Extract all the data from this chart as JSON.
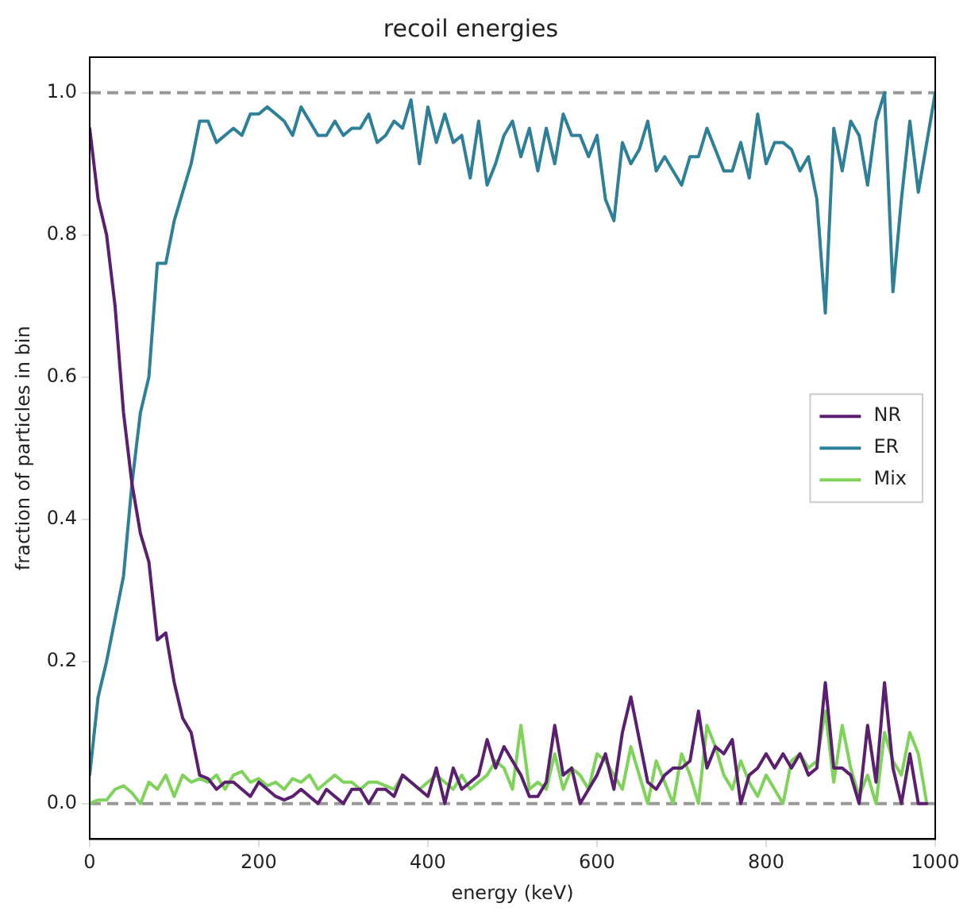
{
  "chart_data": {
    "type": "line",
    "title": "recoil energies",
    "xlabel": "energy (keV)",
    "ylabel": "fraction of particles in bin",
    "x": [
      0,
      10,
      20,
      30,
      40,
      50,
      60,
      70,
      80,
      90,
      100,
      110,
      120,
      130,
      140,
      150,
      160,
      170,
      180,
      190,
      200,
      210,
      220,
      230,
      240,
      250,
      260,
      270,
      280,
      290,
      300,
      310,
      320,
      330,
      340,
      350,
      360,
      370,
      380,
      390,
      400,
      410,
      420,
      430,
      440,
      450,
      460,
      470,
      480,
      490,
      500,
      510,
      520,
      530,
      540,
      550,
      560,
      570,
      580,
      590,
      600,
      610,
      620,
      630,
      640,
      650,
      660,
      670,
      680,
      690,
      700,
      710,
      720,
      730,
      740,
      750,
      760,
      770,
      780,
      790,
      800,
      810,
      820,
      830,
      840,
      850,
      860,
      870,
      880,
      890,
      900,
      910,
      920,
      930,
      940,
      950,
      960,
      970,
      980,
      990
    ],
    "series": [
      {
        "name": "NR",
        "color": "#5b1f70",
        "values": [
          0.95,
          0.85,
          0.8,
          0.7,
          0.55,
          0.45,
          0.38,
          0.34,
          0.23,
          0.24,
          0.17,
          0.12,
          0.1,
          0.04,
          0.035,
          0.02,
          0.03,
          0.03,
          0.02,
          0.01,
          0.03,
          0.02,
          0.01,
          0.005,
          0.01,
          0.02,
          0.01,
          0,
          0.02,
          0.01,
          0,
          0.02,
          0.02,
          0,
          0.02,
          0.02,
          0.01,
          0.04,
          0.03,
          0.02,
          0.01,
          0.05,
          0,
          0.05,
          0.02,
          0.03,
          0.04,
          0.09,
          0.05,
          0.08,
          0.06,
          0.04,
          0.01,
          0.01,
          0.03,
          0.11,
          0.04,
          0.05,
          0,
          0.02,
          0.04,
          0.07,
          0.02,
          0.1,
          0.15,
          0.09,
          0.03,
          0.02,
          0.04,
          0.05,
          0.05,
          0.06,
          0.13,
          0.05,
          0.08,
          0.07,
          0.09,
          0,
          0.04,
          0.05,
          0.07,
          0.05,
          0.07,
          0.05,
          0.07,
          0.04,
          0.05,
          0.17,
          0.05,
          0.05,
          0.04,
          0,
          0.11,
          0.03,
          0.17,
          0.05,
          0,
          0.07,
          0,
          0
        ]
      },
      {
        "name": "ER",
        "color": "#2e7f98",
        "x": [
          0,
          10,
          20,
          30,
          40,
          50,
          60,
          70,
          80,
          90,
          100,
          110,
          120,
          130,
          140,
          150,
          160,
          170,
          180,
          190,
          200,
          210,
          220,
          230,
          240,
          250,
          260,
          270,
          280,
          290,
          300,
          310,
          320,
          330,
          340,
          350,
          360,
          370,
          380,
          390,
          400,
          410,
          420,
          430,
          440,
          450,
          460,
          470,
          480,
          490,
          500,
          510,
          520,
          530,
          540,
          550,
          560,
          570,
          580,
          590,
          600,
          610,
          620,
          630,
          640,
          650,
          660,
          670,
          680,
          690,
          700,
          710,
          720,
          730,
          740,
          750,
          760,
          770,
          780,
          790,
          800,
          810,
          820,
          830,
          840,
          850,
          860,
          870,
          880,
          890,
          900,
          910,
          920,
          930,
          940,
          950,
          960,
          970,
          980,
          990,
          1000
        ],
        "values": [
          0.04,
          0.15,
          0.2,
          0.26,
          0.32,
          0.45,
          0.55,
          0.6,
          0.76,
          0.76,
          0.82,
          0.86,
          0.9,
          0.96,
          0.96,
          0.93,
          0.94,
          0.95,
          0.94,
          0.97,
          0.97,
          0.98,
          0.97,
          0.96,
          0.94,
          0.98,
          0.96,
          0.94,
          0.94,
          0.96,
          0.94,
          0.95,
          0.95,
          0.97,
          0.93,
          0.94,
          0.96,
          0.95,
          0.99,
          0.9,
          0.98,
          0.93,
          0.97,
          0.93,
          0.94,
          0.88,
          0.96,
          0.87,
          0.9,
          0.94,
          0.96,
          0.91,
          0.95,
          0.89,
          0.95,
          0.9,
          0.97,
          0.94,
          0.94,
          0.91,
          0.94,
          0.85,
          0.82,
          0.93,
          0.9,
          0.92,
          0.96,
          0.89,
          0.91,
          0.89,
          0.87,
          0.91,
          0.91,
          0.95,
          0.92,
          0.89,
          0.89,
          0.93,
          0.88,
          0.97,
          0.9,
          0.93,
          0.93,
          0.92,
          0.89,
          0.91,
          0.85,
          0.69,
          0.95,
          0.89,
          0.96,
          0.94,
          0.87,
          0.96,
          1.0,
          0.72,
          0.85,
          0.96,
          0.86,
          0.93,
          1.0
        ]
      },
      {
        "name": "Mix",
        "color": "#7fd35a",
        "values": [
          0,
          0.005,
          0.005,
          0.02,
          0.025,
          0.015,
          0,
          0.03,
          0.02,
          0.04,
          0.01,
          0.04,
          0.03,
          0.035,
          0.03,
          0.04,
          0.02,
          0.04,
          0.045,
          0.03,
          0.035,
          0.025,
          0.03,
          0.02,
          0.035,
          0.03,
          0.04,
          0.02,
          0.03,
          0.04,
          0.03,
          0.03,
          0.02,
          0.03,
          0.03,
          0.025,
          0.02,
          0.04,
          0.03,
          0.02,
          0.03,
          0.04,
          0.03,
          0.02,
          0.04,
          0.02,
          0.03,
          0.04,
          0.06,
          0.05,
          0.02,
          0.11,
          0.02,
          0.03,
          0.02,
          0.07,
          0.02,
          0.05,
          0.04,
          0.02,
          0.07,
          0.06,
          0.04,
          0.02,
          0.08,
          0.04,
          0,
          0.06,
          0.03,
          0,
          0.07,
          0.04,
          0,
          0.11,
          0.08,
          0.04,
          0.02,
          0.06,
          0.03,
          0.01,
          0.04,
          0.02,
          0,
          0.06,
          0.07,
          0.05,
          0.06,
          0.13,
          0.03,
          0.11,
          0.05,
          0.01,
          0.04,
          0,
          0.1,
          0.06,
          0.04,
          0.1,
          0.07,
          0
        ]
      }
    ],
    "xlim": [
      0,
      1000
    ],
    "xticks": [
      0,
      200,
      400,
      600,
      800,
      1000
    ],
    "ylim": [
      -0.05,
      1.05
    ],
    "yticks": [
      {
        "value": 0,
        "label": "0.0"
      },
      {
        "value": 0.2,
        "label": "0.2"
      },
      {
        "value": 0.4,
        "label": "0.4"
      },
      {
        "value": 0.6,
        "label": "0.6"
      },
      {
        "value": 0.8,
        "label": "0.8"
      },
      {
        "value": 1,
        "label": "1.0"
      }
    ],
    "ref_lines": [
      {
        "axis": "y",
        "value": 0,
        "color": "#999999",
        "line_style": "dashed"
      },
      {
        "axis": "y",
        "value": 1,
        "color": "#999999",
        "line_style": "dashed"
      }
    ],
    "legend": "center right",
    "grid": false,
    "marker": "none",
    "line_style": "solid"
  }
}
